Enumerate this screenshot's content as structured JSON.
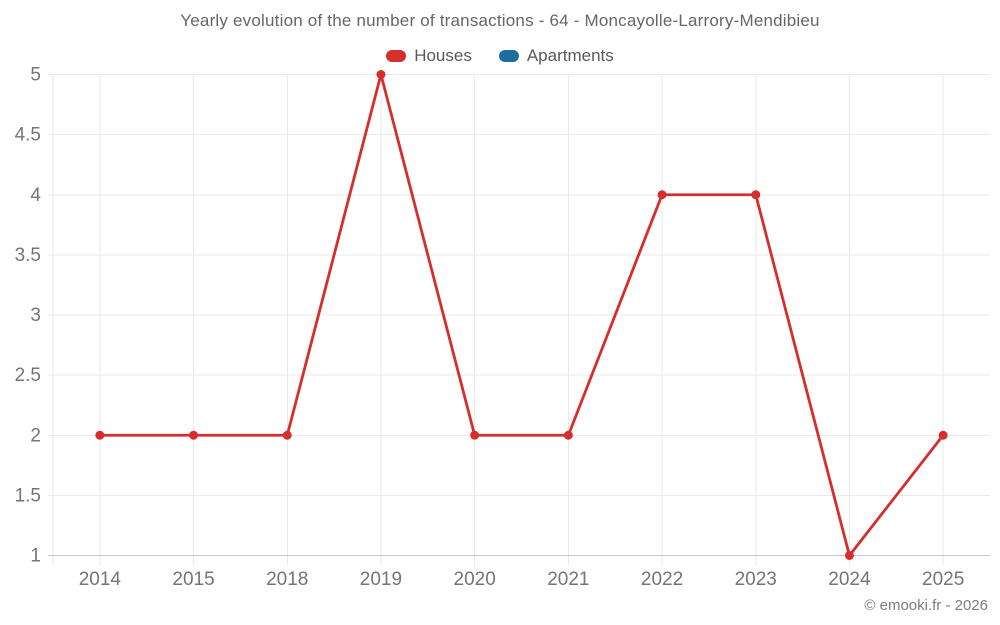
{
  "title": "Yearly evolution of the number of transactions - 64 - Moncayolle-Larrory-Mendibieu",
  "legend": [
    {
      "label": "Houses",
      "color": "#d62e2c"
    },
    {
      "label": "Apartments",
      "color": "#1e6f9f"
    }
  ],
  "copyright": "© emooki.fr - 2026",
  "chart_data": {
    "type": "line",
    "title": "Yearly evolution of the number of transactions - 64 - Moncayolle-Larrory-Mendibieu",
    "categories": [
      "2014",
      "2015",
      "2018",
      "2019",
      "2020",
      "2021",
      "2022",
      "2023",
      "2024",
      "2025"
    ],
    "series": [
      {
        "name": "Houses",
        "color": "#d62e2c",
        "values": [
          2,
          2,
          2,
          5,
          2,
          2,
          4,
          4,
          1,
          2
        ]
      },
      {
        "name": "Apartments",
        "color": "#1e6f9f",
        "values": null
      }
    ],
    "ylim": [
      1,
      5
    ],
    "yticks": [
      1,
      1.5,
      2,
      2.5,
      3,
      3.5,
      4,
      4.5,
      5
    ],
    "xlabel": "",
    "ylabel": "",
    "grid": true,
    "legend_position": "top",
    "marker": "circle"
  }
}
